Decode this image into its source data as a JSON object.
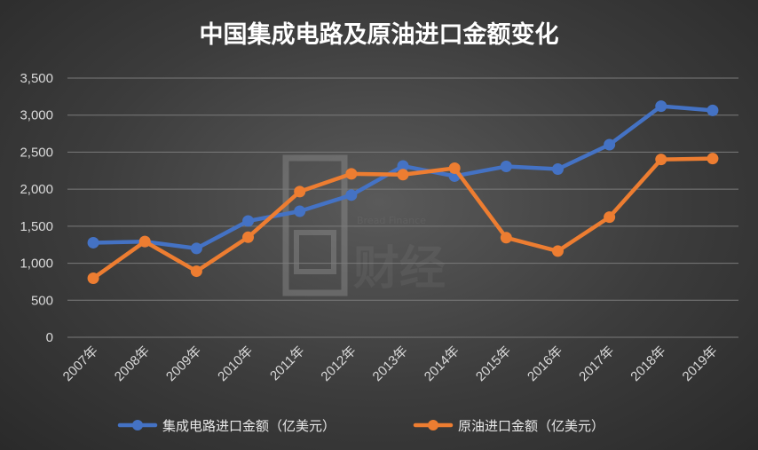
{
  "chart_data": {
    "type": "line",
    "title": "中国集成电路及原油进口金额变化",
    "categories": [
      "2007年",
      "2008年",
      "2009年",
      "2010年",
      "2011年",
      "2012年",
      "2013年",
      "2014年",
      "2015年",
      "2016年",
      "2017年",
      "2018年",
      "2019年"
    ],
    "y_ticks": [
      "0",
      "500",
      "1,000",
      "1,500",
      "2,000",
      "2,500",
      "3,000",
      "3,500"
    ],
    "ylim": [
      0,
      3500
    ],
    "grid": true,
    "legend_position": "bottom",
    "series": [
      {
        "name": "集成电路进口金额（亿美元）",
        "color": "#4472c4",
        "values": [
          1277,
          1292,
          1200,
          1570,
          1702,
          1920,
          2313,
          2176,
          2307,
          2271,
          2601,
          3121,
          3064
        ]
      },
      {
        "name": "原油进口金额（亿美元）",
        "color": "#ed7d31",
        "values": [
          797,
          1293,
          892,
          1351,
          1967,
          2207,
          2196,
          2283,
          1345,
          1164,
          1623,
          2402,
          2413
        ]
      }
    ]
  },
  "watermark": {
    "brand_text": "Bread Finance",
    "chinese_text": "财经"
  }
}
